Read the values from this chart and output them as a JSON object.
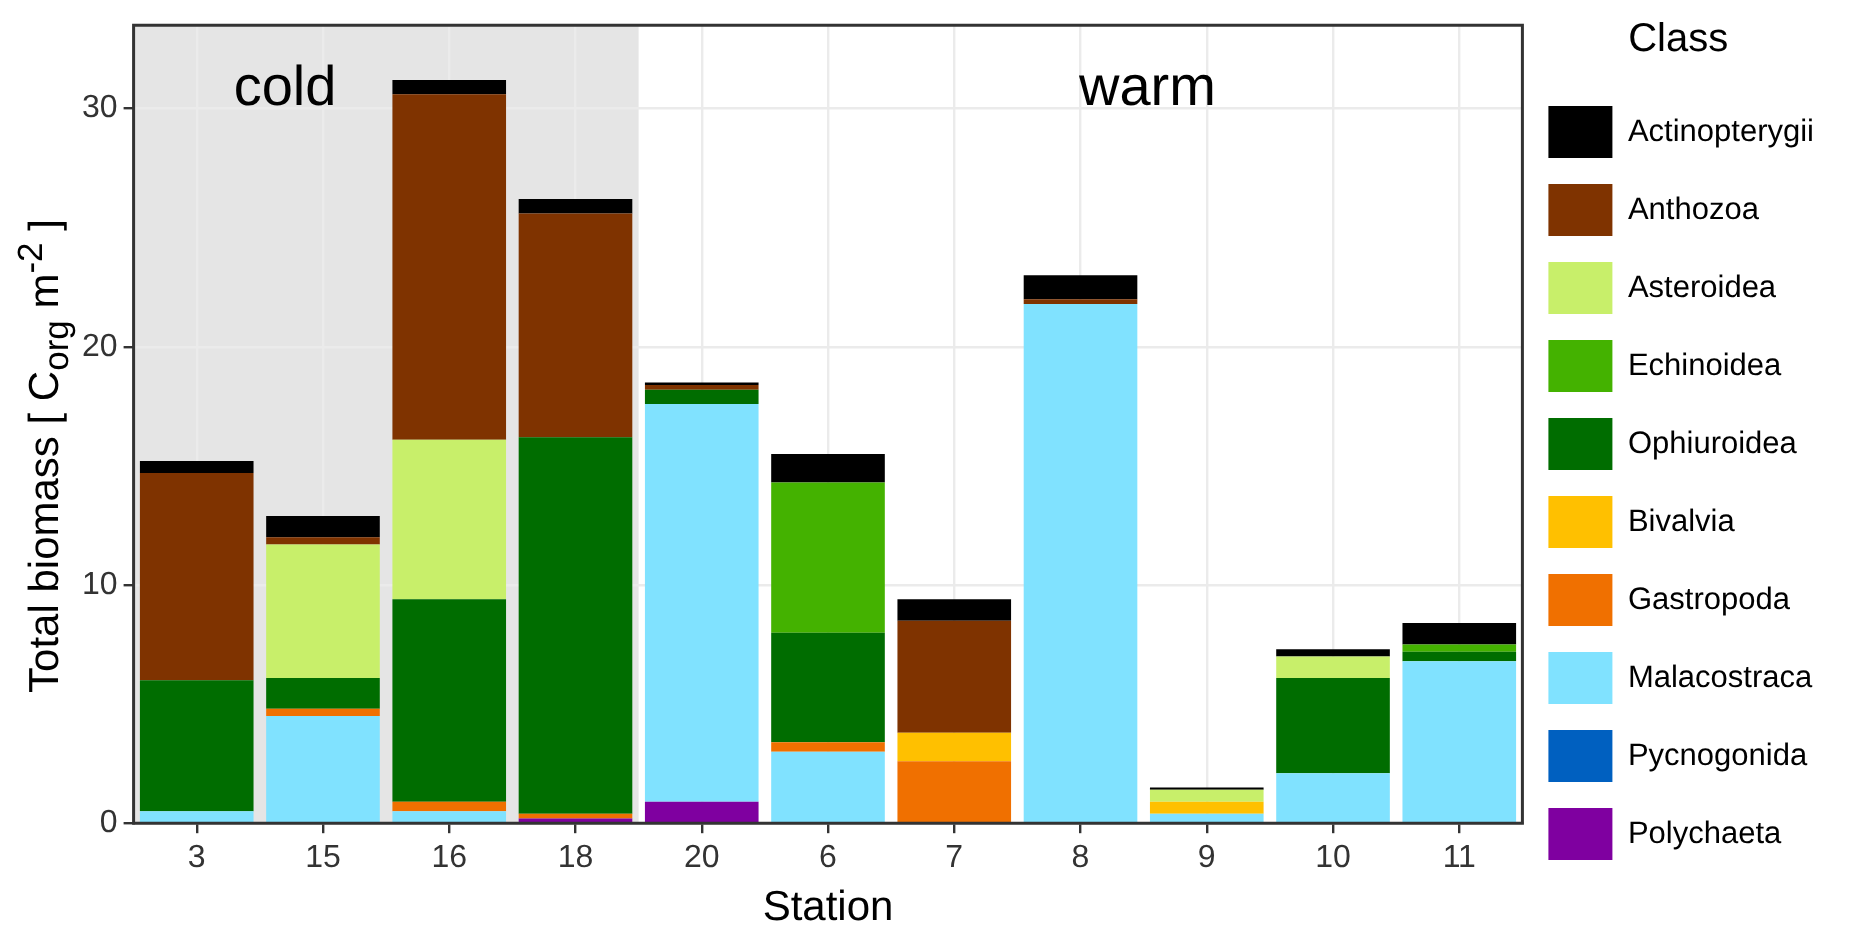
{
  "chart_data": {
    "type": "bar",
    "stacked": true,
    "xlabel": "Station",
    "ylabel": "Total biomass [ C$_{org}$ m$^{-2}$ ]",
    "legend_title": "Class",
    "legend": "right",
    "grid": true,
    "categories": [
      "3",
      "15",
      "16",
      "18",
      "20",
      "6",
      "7",
      "8",
      "9",
      "10",
      "11"
    ],
    "ylim": [
      0,
      33.5
    ],
    "yticks": [
      0,
      10,
      20,
      30
    ],
    "bands": [
      {
        "axis": "x",
        "from": "3",
        "to": "18",
        "label": "cold",
        "color": "#e5e5e5"
      }
    ],
    "annotations": [
      "warm"
    ],
    "series": [
      {
        "name": "Polychaeta",
        "color": "#7f00a0",
        "values": [
          0,
          0,
          0,
          0.2,
          0.9,
          0,
          0,
          0,
          0,
          0,
          0
        ]
      },
      {
        "name": "Pycnogonida",
        "color": "#0060c0",
        "values": [
          0,
          0,
          0,
          0,
          0,
          0,
          0,
          0,
          0,
          0,
          0
        ]
      },
      {
        "name": "Malacostraca",
        "color": "#80e2ff",
        "values": [
          0.5,
          4.5,
          0.5,
          0,
          16.7,
          3.0,
          0,
          21.8,
          0.4,
          2.1,
          6.8
        ]
      },
      {
        "name": "Gastropoda",
        "color": "#f07000",
        "values": [
          0,
          0.3,
          0.4,
          0.2,
          0,
          0.4,
          2.6,
          0,
          0,
          0,
          0
        ]
      },
      {
        "name": "Bivalvia",
        "color": "#ffc000",
        "values": [
          0,
          0,
          0,
          0,
          0,
          0,
          1.2,
          0,
          0.5,
          0,
          0
        ]
      },
      {
        "name": "Ophiuroidea",
        "color": "#006d00",
        "values": [
          5.5,
          1.3,
          8.5,
          15.8,
          0.6,
          4.6,
          0,
          0,
          0,
          4.0,
          0.4
        ]
      },
      {
        "name": "Echinoidea",
        "color": "#44b200",
        "values": [
          0,
          0,
          0,
          0,
          0,
          6.3,
          0,
          0,
          0,
          0,
          0.3
        ]
      },
      {
        "name": "Asteroidea",
        "color": "#c8ef6a",
        "values": [
          0,
          5.6,
          6.7,
          0,
          0,
          0,
          0,
          0,
          0.5,
          0.9,
          0
        ]
      },
      {
        "name": "Anthozoa",
        "color": "#7f3300",
        "values": [
          8.7,
          0.3,
          14.5,
          9.4,
          0.2,
          0,
          4.7,
          0.2,
          0,
          0,
          0
        ]
      },
      {
        "name": "Actinopterygii",
        "color": "#000000",
        "values": [
          0.5,
          0.9,
          0.6,
          0.6,
          0.1,
          1.2,
          0.9,
          1.0,
          0.1,
          0.3,
          0.9
        ]
      }
    ]
  }
}
